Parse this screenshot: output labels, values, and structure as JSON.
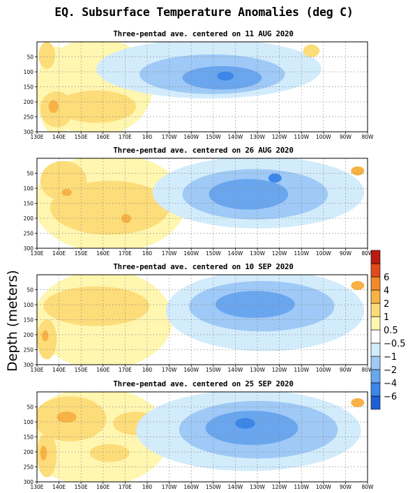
{
  "title": "EQ. Subsurface Temperature Anomalies (deg C)",
  "ylabel": "Depth (meters)",
  "colorbar": {
    "colors": [
      "#1f5fd6",
      "#3c86e8",
      "#6aa6ee",
      "#9fc9f6",
      "#d2ecfc",
      "#ffffff",
      "#fff6b0",
      "#fddc7a",
      "#f7b245",
      "#f08a2a",
      "#e24a1c",
      "#b91c10"
    ],
    "labels": [
      "−6",
      "−4",
      "−2",
      "−1",
      "−0.5",
      "0.5",
      "1",
      "2",
      "4",
      "6"
    ]
  },
  "chart_data": [
    {
      "type": "heatmap",
      "title": "Three-pentad ave. centered on 11 AUG 2020",
      "xlabel": "",
      "ylabel": "Depth (meters)",
      "x_ticks": [
        "130E",
        "140E",
        "150E",
        "160E",
        "170E",
        "180",
        "170W",
        "160W",
        "150W",
        "140W",
        "130W",
        "120W",
        "110W",
        "100W",
        "90W",
        "80W"
      ],
      "y_ticks": [
        "50",
        "100",
        "150",
        "200",
        "250",
        "300"
      ],
      "xlim": [
        "130E",
        "80W"
      ],
      "ylim": [
        300,
        0
      ],
      "grid": true,
      "anomaly_features": [
        {
          "lon": "133E-170E",
          "depth": "0-300",
          "value": 0.7
        },
        {
          "lon": "145E-162E",
          "depth": "150-260",
          "value": 1.2
        },
        {
          "lon": "138E",
          "depth": "220",
          "value": 3
        },
        {
          "lon": "170E-108W",
          "depth": "20-170",
          "value": -0.8
        },
        {
          "lon": "155W-115W",
          "depth": "60-150",
          "value": -1.5
        },
        {
          "lon": "145W",
          "depth": "115",
          "value": -2.5
        },
        {
          "lon": "103W",
          "depth": "40",
          "value": 1.2
        }
      ]
    },
    {
      "type": "heatmap",
      "title": "Three-pentad ave. centered on 26 AUG 2020",
      "xlabel": "",
      "ylabel": "Depth (meters)",
      "x_ticks": [
        "130E",
        "140E",
        "150E",
        "160E",
        "170E",
        "180",
        "170W",
        "160W",
        "150W",
        "140W",
        "130W",
        "120W",
        "110W",
        "100W",
        "90W",
        "80W"
      ],
      "y_ticks": [
        "50",
        "100",
        "150",
        "200",
        "250",
        "300"
      ],
      "xlim": [
        "130E",
        "80W"
      ],
      "ylim": [
        300,
        0
      ],
      "grid": true,
      "anomaly_features": [
        {
          "lon": "130E-168W",
          "depth": "0-300",
          "value": 0.8
        },
        {
          "lon": "140E-175W",
          "depth": "80-240",
          "value": 1.3
        },
        {
          "lon": "142E",
          "depth": "110",
          "value": 2.5
        },
        {
          "lon": "172E",
          "depth": "185",
          "value": 2.5
        },
        {
          "lon": "165W-82W",
          "depth": "20-230",
          "value": -0.8
        },
        {
          "lon": "155W-110W",
          "depth": "50-190",
          "value": -1.5
        },
        {
          "lon": "122W",
          "depth": "75",
          "value": -2.5
        },
        {
          "lon": "81W",
          "depth": "35",
          "value": 1.5
        }
      ]
    },
    {
      "type": "heatmap",
      "title": "Three-pentad ave. centered on 10 SEP 2020",
      "xlabel": "",
      "ylabel": "Depth (meters)",
      "x_ticks": [
        "130E",
        "140E",
        "150E",
        "160E",
        "170E",
        "180",
        "170W",
        "160W",
        "150W",
        "140W",
        "130W",
        "120W",
        "110W",
        "100W",
        "90W",
        "80W"
      ],
      "y_ticks": [
        "50",
        "100",
        "150",
        "200",
        "250",
        "300"
      ],
      "xlim": [
        "130E",
        "80W"
      ],
      "ylim": [
        300,
        0
      ],
      "grid": true,
      "anomaly_features": [
        {
          "lon": "130E-165W",
          "depth": "0-300",
          "value": 0.7
        },
        {
          "lon": "135E-178E",
          "depth": "40-170",
          "value": 1.3
        },
        {
          "lon": "132E",
          "depth": "215",
          "value": 3
        },
        {
          "lon": "158W-82W",
          "depth": "20-250",
          "value": -0.8
        },
        {
          "lon": "150W-110W",
          "depth": "40-170",
          "value": -1.6
        },
        {
          "lon": "135W",
          "depth": "100",
          "value": -2.5
        },
        {
          "lon": "81W",
          "depth": "35",
          "value": 1.5
        }
      ]
    },
    {
      "type": "heatmap",
      "title": "Three-pentad ave. centered on 25 SEP 2020",
      "xlabel": "",
      "ylabel": "Depth (meters)",
      "x_ticks": [
        "130E",
        "140E",
        "150E",
        "160E",
        "170E",
        "180",
        "170W",
        "160W",
        "150W",
        "140W",
        "130W",
        "120W",
        "110W",
        "100W",
        "90W",
        "80W"
      ],
      "y_ticks": [
        "50",
        "100",
        "150",
        "200",
        "250",
        "300"
      ],
      "xlim": [
        "130E",
        "80W"
      ],
      "ylim": [
        300,
        0
      ],
      "grid": true,
      "anomaly_features": [
        {
          "lon": "130E-175W",
          "depth": "0-300",
          "value": 0.7
        },
        {
          "lon": "132E-152E",
          "depth": "40-170",
          "value": 1.4
        },
        {
          "lon": "145E",
          "depth": "100",
          "value": 3
        },
        {
          "lon": "165E-180",
          "depth": "110-160",
          "value": 1.2
        },
        {
          "lon": "131E",
          "depth": "230",
          "value": 3
        },
        {
          "lon": "172W-85W",
          "depth": "10-270",
          "value": -0.8
        },
        {
          "lon": "150W-100W",
          "depth": "40-200",
          "value": -1.6
        },
        {
          "lon": "128W",
          "depth": "85",
          "value": -2.5
        },
        {
          "lon": "81W",
          "depth": "30",
          "value": 1.5
        }
      ]
    }
  ]
}
